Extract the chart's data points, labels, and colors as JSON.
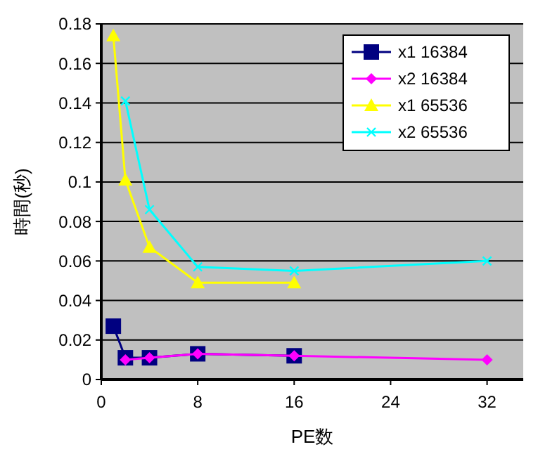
{
  "chart_data": {
    "type": "line",
    "xlabel": "PE数",
    "ylabel": "時間(秒)",
    "xlim": [
      0,
      35
    ],
    "xticks": [
      0,
      8,
      16,
      24,
      32
    ],
    "ylim": [
      0,
      0.18
    ],
    "yticks": [
      0,
      0.02,
      0.04,
      0.06,
      0.08,
      0.1,
      0.12,
      0.14,
      0.16,
      0.18
    ],
    "grid": "y",
    "legend": "top right",
    "series": [
      {
        "name": "x1 16384",
        "color": "#000080",
        "marker": "square",
        "x": [
          1,
          2,
          4,
          8,
          16
        ],
        "values": [
          0.027,
          0.011,
          0.011,
          0.013,
          0.012
        ]
      },
      {
        "name": "x2 16384",
        "color": "#ff00ff",
        "marker": "diamond",
        "x": [
          2,
          4,
          8,
          16,
          32
        ],
        "values": [
          0.01,
          0.011,
          0.013,
          0.012,
          0.01
        ]
      },
      {
        "name": "x1 65536",
        "color": "#ffff00",
        "marker": "triangle",
        "x": [
          1,
          2,
          4,
          8,
          16
        ],
        "values": [
          0.174,
          0.101,
          0.067,
          0.049,
          0.049
        ]
      },
      {
        "name": "x2 65536",
        "color": "#00ffff",
        "marker": "cross",
        "x": [
          2,
          4,
          8,
          16,
          32
        ],
        "values": [
          0.141,
          0.086,
          0.057,
          0.055,
          0.06
        ]
      }
    ]
  }
}
